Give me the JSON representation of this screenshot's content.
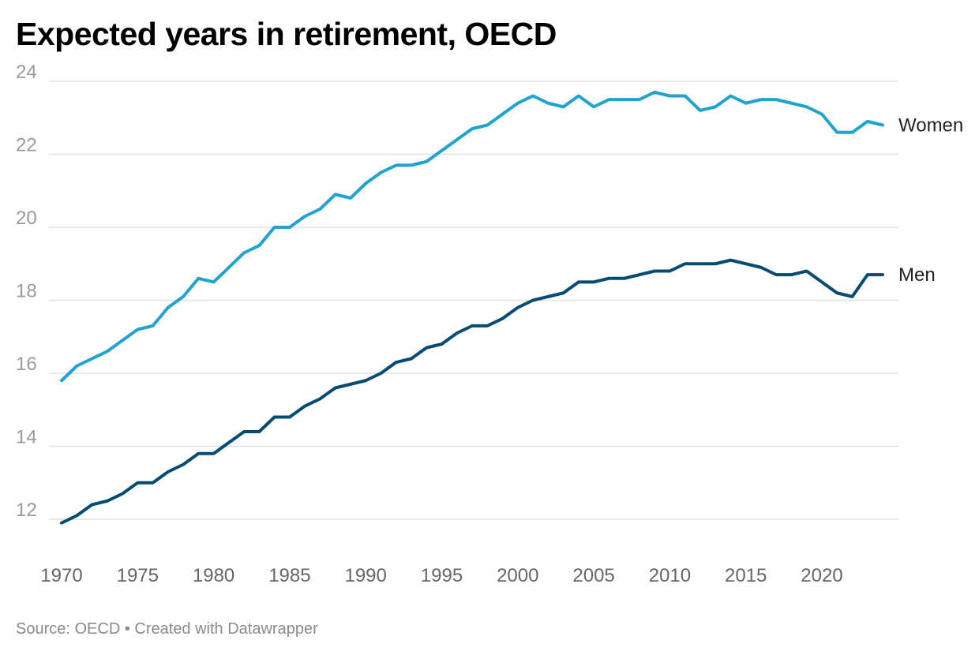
{
  "title": "Expected years in retirement, OECD",
  "footer": {
    "source": "Source: OECD",
    "separator": "•",
    "credit": "Created with Datawrapper"
  },
  "colors": {
    "women": "#21a3cf",
    "men": "#064b72",
    "grid": "#e0e0e0"
  },
  "chart_data": {
    "type": "line",
    "title": "Expected years in retirement, OECD",
    "xlabel": "",
    "ylabel": "",
    "xlim": [
      1970,
      2024
    ],
    "ylim": [
      12,
      24
    ],
    "yticks": [
      12,
      14,
      16,
      18,
      20,
      22,
      24
    ],
    "xticks": [
      1970,
      1975,
      1980,
      1985,
      1990,
      1995,
      2000,
      2005,
      2010,
      2015,
      2020
    ],
    "grid": true,
    "legend": "direct labels at line ends",
    "x": [
      1970,
      1971,
      1972,
      1973,
      1974,
      1975,
      1976,
      1977,
      1978,
      1979,
      1980,
      1981,
      1982,
      1983,
      1984,
      1985,
      1986,
      1987,
      1988,
      1989,
      1990,
      1991,
      1992,
      1993,
      1994,
      1995,
      1996,
      1997,
      1998,
      1999,
      2000,
      2001,
      2002,
      2003,
      2004,
      2005,
      2006,
      2007,
      2008,
      2009,
      2010,
      2011,
      2012,
      2013,
      2014,
      2015,
      2016,
      2017,
      2018,
      2019,
      2020,
      2021,
      2022,
      2023,
      2024
    ],
    "series": [
      {
        "name": "Women",
        "values": [
          15.8,
          16.2,
          16.4,
          16.6,
          16.9,
          17.2,
          17.3,
          17.8,
          18.1,
          18.6,
          18.5,
          18.9,
          19.3,
          19.5,
          20.0,
          20.0,
          20.3,
          20.5,
          20.9,
          20.8,
          21.2,
          21.5,
          21.7,
          21.7,
          21.8,
          22.1,
          22.4,
          22.7,
          22.8,
          23.1,
          23.4,
          23.6,
          23.4,
          23.3,
          23.6,
          23.3,
          23.5,
          23.5,
          23.5,
          23.7,
          23.6,
          23.6,
          23.2,
          23.3,
          23.6,
          23.4,
          23.5,
          23.5,
          23.4,
          23.3,
          23.1,
          22.6,
          22.6,
          22.9,
          22.8
        ]
      },
      {
        "name": "Men",
        "values": [
          11.9,
          12.1,
          12.4,
          12.5,
          12.7,
          13.0,
          13.0,
          13.3,
          13.5,
          13.8,
          13.8,
          14.1,
          14.4,
          14.4,
          14.8,
          14.8,
          15.1,
          15.3,
          15.6,
          15.7,
          15.8,
          16.0,
          16.3,
          16.4,
          16.7,
          16.8,
          17.1,
          17.3,
          17.3,
          17.5,
          17.8,
          18.0,
          18.1,
          18.2,
          18.5,
          18.5,
          18.6,
          18.6,
          18.7,
          18.8,
          18.8,
          19.0,
          19.0,
          19.0,
          19.1,
          19.0,
          18.9,
          18.7,
          18.7,
          18.8,
          18.5,
          18.2,
          18.1,
          18.7,
          18.7
        ]
      }
    ]
  }
}
